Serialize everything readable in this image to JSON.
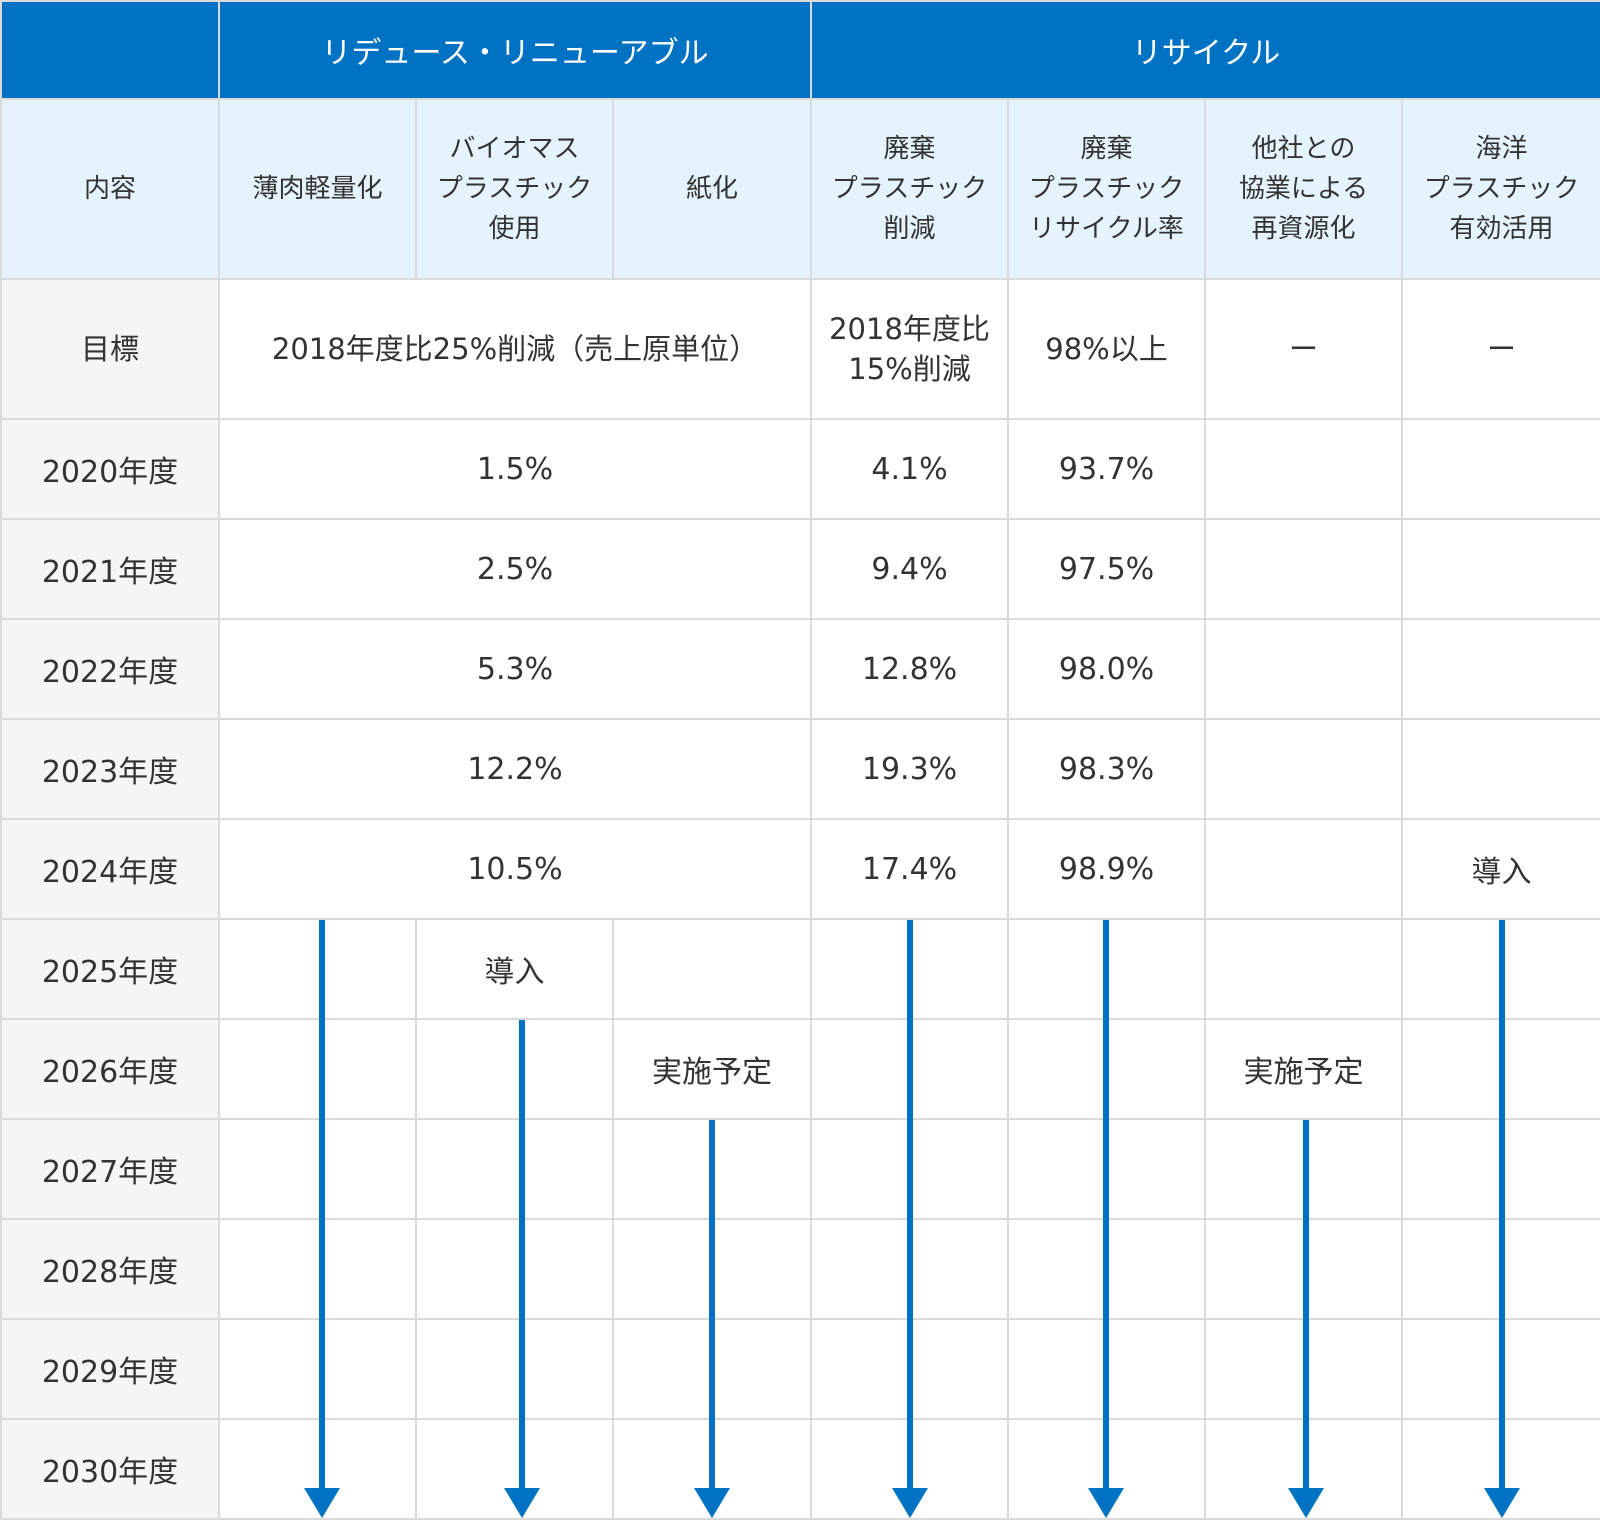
{
  "header": {
    "groups": [
      {
        "label": "リデュース・リニューアブル"
      },
      {
        "label": "リサイクル"
      }
    ],
    "row_label": "内容",
    "columns": [
      "薄肉軽量化",
      "バイオマス\nプラスチック\n使用",
      "紙化",
      "廃棄\nプラスチック\n削減",
      "廃棄\nプラスチック\nリサイクル率",
      "他社との\n協業による\n再資源化",
      "海洋\nプラスチック\n有効活用"
    ]
  },
  "target": {
    "label": "目標",
    "reduce_renewable": "2018年度比25%削減（売上原単位）",
    "waste_reduction": "2018年度比\n15%削減",
    "recycle_rate": "98%以上",
    "collaboration": "ー",
    "marine": "ー"
  },
  "years": [
    {
      "label": "2020年度",
      "reduce_renewable": "1.5%",
      "waste_reduction": "4.1%",
      "recycle_rate": "93.7%"
    },
    {
      "label": "2021年度",
      "reduce_renewable": "2.5%",
      "waste_reduction": "9.4%",
      "recycle_rate": "97.5%"
    },
    {
      "label": "2022年度",
      "reduce_renewable": "5.3%",
      "waste_reduction": "12.8%",
      "recycle_rate": "98.0%"
    },
    {
      "label": "2023年度",
      "reduce_renewable": "12.2%",
      "waste_reduction": "19.3%",
      "recycle_rate": "98.3%"
    },
    {
      "label": "2024年度",
      "reduce_renewable": "10.5%",
      "waste_reduction": "17.4%",
      "recycle_rate": "98.9%",
      "marine": "導入"
    },
    {
      "label": "2025年度",
      "biomass": "導入"
    },
    {
      "label": "2026年度",
      "paper": "実施予定",
      "collaboration": "実施予定"
    },
    {
      "label": "2027年度"
    },
    {
      "label": "2028年度"
    },
    {
      "label": "2029年度"
    },
    {
      "label": "2030年度"
    }
  ],
  "colors": {
    "header_blue": "#0072c3",
    "subheader_bg": "#e5f4fc",
    "rowhead_bg": "#f5f5f5",
    "arrow": "#0072c3",
    "border": "#dadada"
  }
}
